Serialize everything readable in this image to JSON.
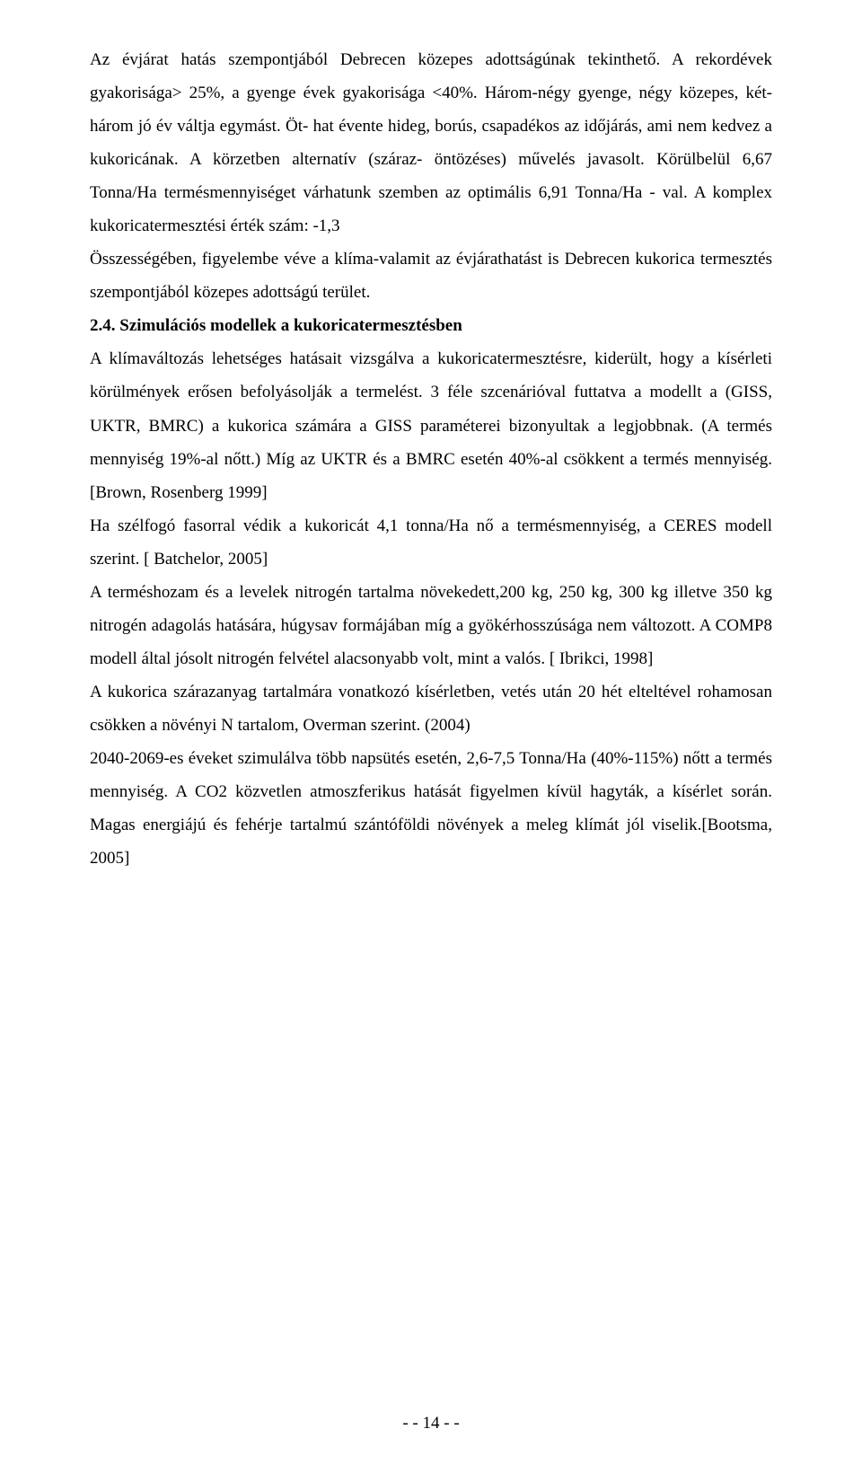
{
  "paragraphs": {
    "p1": "Az évjárat hatás szempontjából Debrecen közepes adottságúnak tekinthető. A rekordévek gyakorisága> 25%, a gyenge évek gyakorisága <40%. Három-négy gyenge, négy közepes, két- három jó év váltja egymást. Öt- hat évente hideg, borús, csapadékos az időjárás, ami nem kedvez a kukoricának. A körzetben alternatív (száraz- öntözéses) művelés javasolt. Körülbelül 6,67 Tonna/Ha termésmennyiséget várhatunk szemben az optimális 6,91 Tonna/Ha - val. A komplex kukoricatermesztési érték szám: -1,3",
    "p2": "Összességében, figyelembe véve a klíma-valamit az évjárathatást is Debrecen kukorica termesztés szempontjából közepes adottságú terület.",
    "heading": "2.4. Szimulációs modellek a kukoricatermesztésben",
    "p3": "A klímaváltozás lehetséges hatásait vizsgálva a kukoricatermesztésre, kiderült, hogy a kísérleti körülmények erősen befolyásolják a termelést. 3 féle szcenárióval futtatva a modellt a (GISS, UKTR, BMRC) a kukorica számára a GISS paraméterei bizonyultak a legjobbnak. (A termés mennyiség 19%-al nőtt.) Míg az UKTR és a BMRC esetén 40%-al csökkent a termés mennyiség.[Brown, Rosenberg 1999]",
    "p4": "Ha szélfogó fasorral védik a kukoricát 4,1 tonna/Ha nő a termésmennyiség, a CERES modell szerint. [ Batchelor, 2005]",
    "p5": "A terméshozam és a levelek nitrogén tartalma növekedett,200 kg, 250 kg, 300 kg illetve 350 kg nitrogén adagolás hatására, húgysav formájában míg a gyökérhosszúsága nem változott. A COMP8 modell által jósolt nitrogén felvétel alacsonyabb volt, mint a valós. [ Ibrikci, 1998]",
    "p6": "A kukorica szárazanyag tartalmára vonatkozó kísérletben, vetés után 20 hét elteltével rohamosan csökken a növényi N tartalom, Overman szerint. (2004)",
    "p7": "2040-2069-es éveket szimulálva több napsütés esetén, 2,6-7,5 Tonna/Ha (40%-115%) nőtt a termés mennyiség. A CO2 közvetlen atmoszferikus hatását figyelmen kívül hagyták, a kísérlet során. Magas energiájú és fehérje tartalmú szántóföldi növények a meleg klímát jól viselik.[Bootsma, 2005]"
  },
  "footer": "- - 14 - -"
}
